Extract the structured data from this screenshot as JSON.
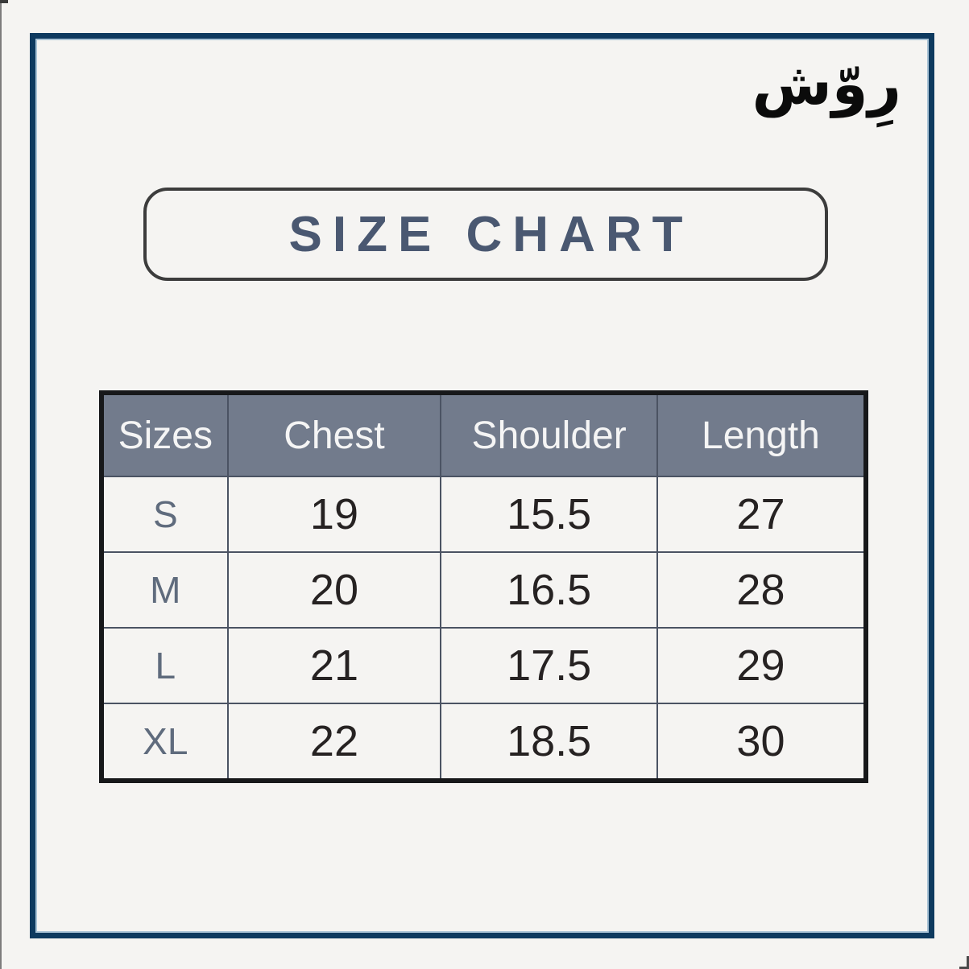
{
  "brand": {
    "text": "رِوّش"
  },
  "title": {
    "text": "SIZE CHART"
  },
  "table": {
    "headers": [
      "Sizes",
      "Chest",
      "Shoulder",
      "Length"
    ],
    "rows": [
      [
        "S",
        "19",
        "15.5",
        "27"
      ],
      [
        "M",
        "20",
        "16.5",
        "28"
      ],
      [
        "L",
        "21",
        "17.5",
        "29"
      ],
      [
        "XL",
        "22",
        "18.5",
        "30"
      ]
    ]
  },
  "colors": {
    "background": "#f5f4f2",
    "frame": "#0e3a5f",
    "frame_inner_edge": "#a9c3d6",
    "title_text": "#4a5871",
    "title_border": "#3c3c3c",
    "header_bg": "#727b8c",
    "header_text": "#f5f5f5",
    "grid": "#4b5363",
    "table_border": "#17181a",
    "size_label": "#5f6b7d",
    "number": "#262222"
  }
}
